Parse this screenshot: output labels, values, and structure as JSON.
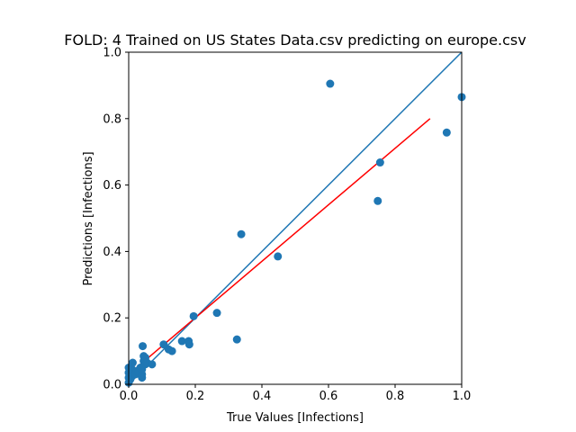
{
  "chart_data": {
    "type": "scatter",
    "title": "FOLD: 4 Trained on US States Data.csv predicting on europe.csv",
    "xlabel": "True Values [Infections]",
    "ylabel": "Predictions [Infections]",
    "xlim": [
      0,
      1
    ],
    "ylim": [
      0,
      1
    ],
    "xticks": [
      "0.0",
      "0.2",
      "0.4",
      "0.6",
      "0.8",
      "1.0"
    ],
    "yticks": [
      "0.0",
      "0.2",
      "0.4",
      "0.6",
      "0.8",
      "1.0"
    ],
    "grid": false,
    "colors": {
      "points": "#1f77b4",
      "identity_line": "#1f77b4",
      "fit_line": "#ff0000"
    },
    "points": [
      {
        "x": 0.0,
        "y": 0.005
      },
      {
        "x": 0.0,
        "y": 0.02
      },
      {
        "x": 0.0,
        "y": 0.035
      },
      {
        "x": 0.0,
        "y": 0.05
      },
      {
        "x": 0.005,
        "y": 0.015
      },
      {
        "x": 0.01,
        "y": 0.045
      },
      {
        "x": 0.012,
        "y": 0.065
      },
      {
        "x": 0.02,
        "y": 0.03
      },
      {
        "x": 0.025,
        "y": 0.04
      },
      {
        "x": 0.03,
        "y": 0.035
      },
      {
        "x": 0.035,
        "y": 0.05
      },
      {
        "x": 0.04,
        "y": 0.02
      },
      {
        "x": 0.04,
        "y": 0.03
      },
      {
        "x": 0.04,
        "y": 0.045
      },
      {
        "x": 0.042,
        "y": 0.115
      },
      {
        "x": 0.045,
        "y": 0.07
      },
      {
        "x": 0.045,
        "y": 0.085
      },
      {
        "x": 0.05,
        "y": 0.06
      },
      {
        "x": 0.05,
        "y": 0.08
      },
      {
        "x": 0.055,
        "y": 0.065
      },
      {
        "x": 0.07,
        "y": 0.06
      },
      {
        "x": 0.105,
        "y": 0.12
      },
      {
        "x": 0.12,
        "y": 0.105
      },
      {
        "x": 0.13,
        "y": 0.1
      },
      {
        "x": 0.16,
        "y": 0.13
      },
      {
        "x": 0.18,
        "y": 0.13
      },
      {
        "x": 0.182,
        "y": 0.12
      },
      {
        "x": 0.195,
        "y": 0.205
      },
      {
        "x": 0.265,
        "y": 0.215
      },
      {
        "x": 0.325,
        "y": 0.135
      },
      {
        "x": 0.338,
        "y": 0.452
      },
      {
        "x": 0.448,
        "y": 0.385
      },
      {
        "x": 0.605,
        "y": 0.905
      },
      {
        "x": 0.748,
        "y": 0.552
      },
      {
        "x": 0.755,
        "y": 0.668
      },
      {
        "x": 0.955,
        "y": 0.758
      },
      {
        "x": 1.0,
        "y": 0.865
      }
    ],
    "identity_line": {
      "x": [
        0,
        1
      ],
      "y": [
        0,
        1
      ]
    },
    "fit_line": {
      "x": [
        0.0,
        0.905
      ],
      "y": [
        0.03,
        0.8
      ]
    }
  }
}
